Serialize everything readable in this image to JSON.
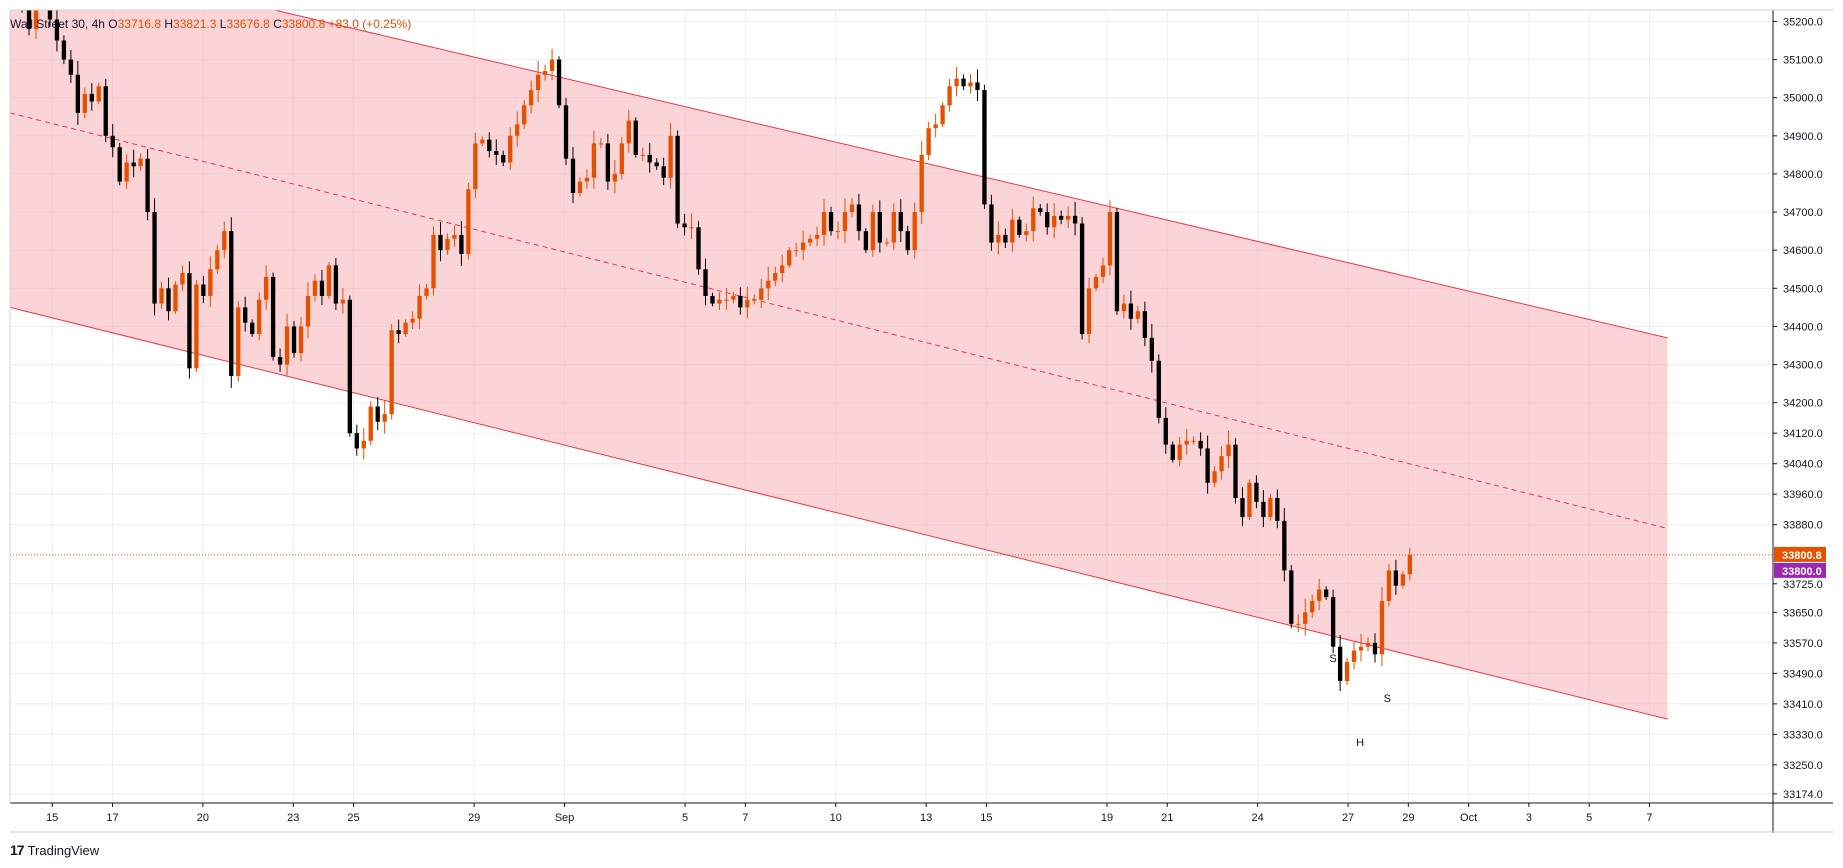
{
  "legend": {
    "symbol": "Wall Street 30, 4h",
    "o_label": "O",
    "o_value": "33716.8",
    "h_label": "H",
    "h_value": "33821.3",
    "l_label": "L",
    "l_value": "33676.8",
    "c_label": "C",
    "c_value": "33800.8",
    "change": "+83.0 (+0.25%)"
  },
  "branding": {
    "logo_mark": "17",
    "name": "TradingView"
  },
  "colors": {
    "up": "#e65100",
    "down": "#000000",
    "channel_line": "#f23645",
    "channel_fill": "#f7a9b1",
    "price_label": "#e65100",
    "marker_label": "#9c27b0",
    "grid": "#eceff2",
    "axis": "#131722"
  },
  "chart_data": {
    "type": "candlestick",
    "title": "",
    "timeframe": "4h",
    "y_ticks": [
      35200,
      35100,
      35000,
      34900,
      34800,
      34700,
      34600,
      34500,
      34400,
      34300,
      34200,
      34120,
      34040,
      33960,
      33880,
      33725,
      33650,
      33570,
      33490,
      33410,
      33330,
      33250,
      33174
    ],
    "y_tick_labels": [
      "35200.0",
      "35100.0",
      "35000.0",
      "34900.0",
      "34800.0",
      "34700.0",
      "34600.0",
      "34500.0",
      "34400.0",
      "34300.0",
      "34200.0",
      "34120.0",
      "34040.0",
      "33960.0",
      "33880.0",
      "33725.0",
      "33650.0",
      "33570.0",
      "33490.0",
      "33410.0",
      "33330.0",
      "33250.0",
      "33174.0"
    ],
    "ylim": [
      33150,
      35230
    ],
    "x_ticks": [
      {
        "label": "15",
        "pos": 14.6
      },
      {
        "label": "17",
        "pos": 16.6
      },
      {
        "label": "20",
        "pos": 19.6
      },
      {
        "label": "23",
        "pos": 22.6
      },
      {
        "label": "25",
        "pos": 24.6
      },
      {
        "label": "29",
        "pos": 28.6
      },
      {
        "label": "Sep",
        "pos": 31.6
      },
      {
        "label": "5",
        "pos": 35.6
      },
      {
        "label": "7",
        "pos": 37.6
      },
      {
        "label": "10",
        "pos": 40.6
      },
      {
        "label": "13",
        "pos": 43.6
      },
      {
        "label": "15",
        "pos": 45.6
      },
      {
        "label": "19",
        "pos": 49.6
      },
      {
        "label": "21",
        "pos": 51.6
      },
      {
        "label": "24",
        "pos": 54.6
      },
      {
        "label": "27",
        "pos": 57.6
      },
      {
        "label": "29",
        "pos": 59.6
      },
      {
        "label": "Oct",
        "pos": 61.6
      },
      {
        "label": "3",
        "pos": 63.6
      },
      {
        "label": "5",
        "pos": 65.6
      },
      {
        "label": "7",
        "pos": 67.6
      }
    ],
    "xlim": [
      13.2,
      71.7
    ],
    "last_price": 33800.8,
    "last_price_label": "33800.8",
    "marker_price": 33800.0,
    "marker_price_label": "33800.0",
    "channel": {
      "upper": [
        [
          20.9,
          35250
        ],
        [
          68.2,
          34370
        ]
      ],
      "lower": [
        [
          13.2,
          34450
        ],
        [
          68.2,
          33370
        ]
      ],
      "mid": [
        [
          13.2,
          34960
        ],
        [
          68.2,
          33870
        ]
      ],
      "fill_end": 68.2
    },
    "pattern_labels": [
      {
        "text": "S",
        "x": 57.1,
        "y": 33520
      },
      {
        "text": "H",
        "x": 58.0,
        "y": 33300
      },
      {
        "text": "S",
        "x": 58.9,
        "y": 33415
      }
    ],
    "closes": [
      35230,
      35180,
      35240,
      35260,
      35205,
      35150,
      35100,
      35060,
      34960,
      35010,
      34990,
      35030,
      34900,
      34870,
      34780,
      34830,
      34820,
      34840,
      34700,
      34460,
      34500,
      34440,
      34510,
      34540,
      34290,
      34510,
      34480,
      34550,
      34600,
      34650,
      34270,
      34450,
      34410,
      34380,
      34470,
      34530,
      34320,
      34300,
      34400,
      34330,
      34400,
      34480,
      34520,
      34480,
      34560,
      34460,
      34470,
      34120,
      34080,
      34100,
      34190,
      34150,
      34170,
      34390,
      34380,
      34410,
      34420,
      34480,
      34500,
      34640,
      34600,
      34630,
      34640,
      34590,
      34760,
      34880,
      34890,
      34860,
      34850,
      34830,
      34900,
      34930,
      34980,
      35020,
      35060,
      35070,
      35100,
      34980,
      34840,
      34750,
      34780,
      34790,
      34880,
      34880,
      34780,
      34800,
      34880,
      34940,
      34850,
      34850,
      34830,
      34820,
      34790,
      34900,
      34670,
      34660,
      34660,
      34550,
      34480,
      34460,
      34470,
      34470,
      34480,
      34450,
      34470,
      34470,
      34500,
      34520,
      34540,
      34560,
      34600,
      34600,
      34620,
      34630,
      34640,
      34700,
      34650,
      34650,
      34700,
      34720,
      34650,
      34600,
      34700,
      34620,
      34620,
      34700,
      34650,
      34600,
      34700,
      34850,
      34920,
      34930,
      34980,
      35030,
      35050,
      35030,
      35040,
      35020,
      34720,
      34620,
      34640,
      34620,
      34680,
      34640,
      34650,
      34710,
      34700,
      34660,
      34690,
      34680,
      34690,
      34670,
      34380,
      34500,
      34530,
      34560,
      34700,
      34440,
      34460,
      34420,
      34440,
      34370,
      34310,
      34160,
      34090,
      34050,
      34090,
      34100,
      34100,
      34080,
      33990,
      34020,
      34060,
      34090,
      33950,
      33900,
      33990,
      33940,
      33900,
      33950,
      33890,
      33760,
      33620,
      33620,
      33650,
      33680,
      33710,
      33690,
      33560,
      33470,
      33520,
      33550,
      33560,
      33570,
      33540,
      33680,
      33760,
      33720,
      33750,
      33800
    ]
  }
}
